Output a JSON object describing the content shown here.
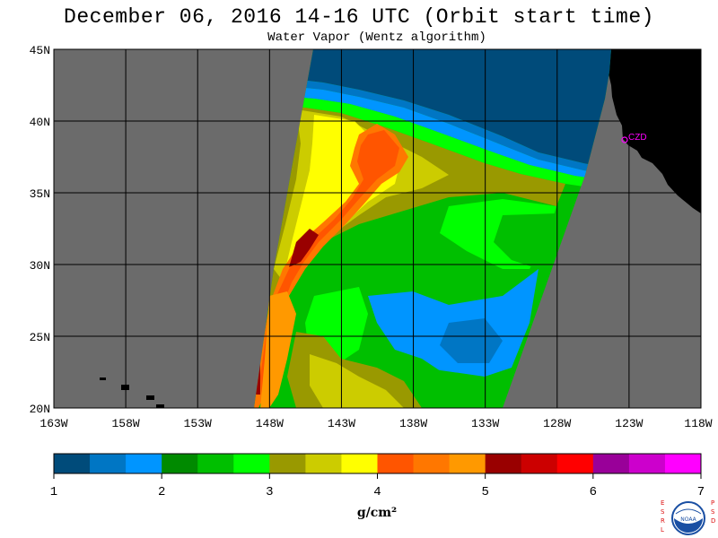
{
  "header": {
    "title": "December 06, 2016  14-16 UTC  (Orbit start time)",
    "subtitle": "Water Vapor (Wentz algorithm)"
  },
  "map": {
    "lon_range": [
      -163,
      -118
    ],
    "lat_range": [
      20,
      45
    ],
    "lon_ticks": [
      "163W",
      "158W",
      "153W",
      "148W",
      "143W",
      "138W",
      "133W",
      "128W",
      "123W",
      "118W"
    ],
    "lat_ticks": [
      "45N",
      "40N",
      "35N",
      "30N",
      "25N",
      "20N"
    ],
    "station_label": "CZD",
    "colors": {
      "no_data": "#6b6b6b",
      "land": "#000000",
      "grid": "#000000",
      "station": "#ff00ff"
    }
  },
  "colorbar": {
    "tick_labels": [
      "1",
      "2",
      "3",
      "4",
      "5",
      "6",
      "7"
    ],
    "units": "g/cm²",
    "colors": [
      "#004b7a",
      "#0076c4",
      "#0095ff",
      "#008a00",
      "#00bf00",
      "#00ff00",
      "#999900",
      "#cccc00",
      "#ffff00",
      "#ff5500",
      "#ff7700",
      "#ff9900",
      "#990000",
      "#cc0000",
      "#ff0000",
      "#990099",
      "#cc00cc",
      "#ff00ff"
    ]
  },
  "logo": {
    "left_letters": "ESRL",
    "right_letters": "PSD",
    "emblem_text": "NOAA"
  }
}
